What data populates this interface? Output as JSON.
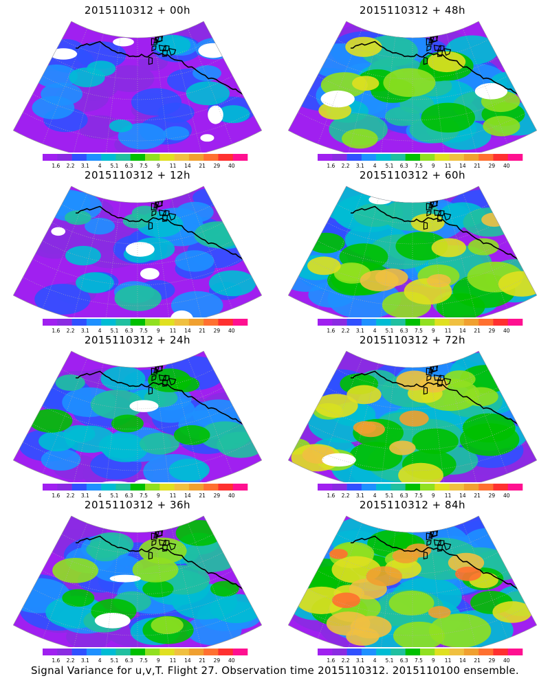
{
  "panels": [
    {
      "title": "2015110312 + 00h",
      "intensity": 0.15
    },
    {
      "title": "2015110312 + 48h",
      "intensity": 0.62
    },
    {
      "title": "2015110312 + 12h",
      "intensity": 0.3
    },
    {
      "title": "2015110312 + 60h",
      "intensity": 0.7
    },
    {
      "title": "2015110312 + 24h",
      "intensity": 0.42
    },
    {
      "title": "2015110312 + 72h",
      "intensity": 0.78
    },
    {
      "title": "2015110312 + 36h",
      "intensity": 0.52
    },
    {
      "title": "2015110312 + 84h",
      "intensity": 0.86
    }
  ],
  "colorbar": {
    "labels": [
      "1.6",
      "2.2",
      "3.1",
      "4",
      "5.1",
      "6.3",
      "7.5",
      "9",
      "11",
      "14",
      "21",
      "29",
      "40"
    ],
    "colors": [
      "#a020f0",
      "#8a2be2",
      "#3050ff",
      "#1e90ff",
      "#00bcd4",
      "#20c0a0",
      "#00c000",
      "#90e020",
      "#e0e020",
      "#f0c040",
      "#f0a030",
      "#ff7030",
      "#ff3030",
      "#ff1090"
    ]
  },
  "caption": "Signal Variance for u,v,T. Flight 27. Observation time 2015110312. 2015110100 ensemble."
}
